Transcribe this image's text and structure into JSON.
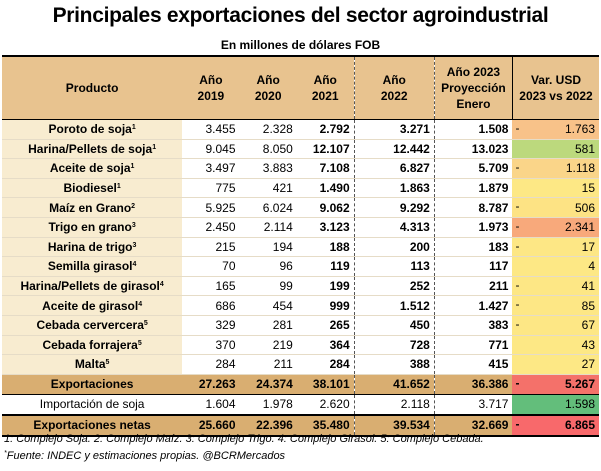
{
  "title": "Principales exportaciones del sector agroindustrial",
  "subtitle": "En millones de dólares FOB",
  "headers": [
    [
      "Producto"
    ],
    [
      "Año",
      "2019"
    ],
    [
      "Año",
      "2020"
    ],
    [
      "Año",
      "2021"
    ],
    [
      "Año",
      "2022"
    ],
    [
      "Año 2023",
      "Proyección",
      "Enero"
    ],
    [
      "Var. USD",
      "2023 vs 2022"
    ]
  ],
  "rows": [
    {
      "name": "Poroto de soja",
      "note": "1",
      "v2019": "3.455",
      "v2020": "2.328",
      "v2021": "2.792",
      "v2022": "3.271",
      "v2023": "1.508",
      "neg": "-",
      "var": "1.763",
      "color": "#f8c289"
    },
    {
      "name": "Harina/Pellets de soja",
      "note": "1",
      "v2019": "9.045",
      "v2020": "8.050",
      "v2021": "12.107",
      "v2022": "12.442",
      "v2023": "13.023",
      "neg": "",
      "var": "581",
      "color": "#bcd97d"
    },
    {
      "name": "Aceite de soja",
      "note": "1",
      "v2019": "3.497",
      "v2020": "3.883",
      "v2021": "7.108",
      "v2022": "6.827",
      "v2023": "5.709",
      "neg": "-",
      "var": "1.118",
      "color": "#fad589"
    },
    {
      "name": "Biodiesel",
      "note": "1",
      "v2019": "775",
      "v2020": "421",
      "v2021": "1.490",
      "v2022": "1.863",
      "v2023": "1.879",
      "neg": "",
      "var": "15",
      "color": "#fde885"
    },
    {
      "name": "Maíz en Grano",
      "note": "2",
      "v2019": "5.925",
      "v2020": "6.024",
      "v2021": "9.062",
      "v2022": "9.292",
      "v2023": "8.787",
      "neg": "-",
      "var": "506",
      "color": "#fde384"
    },
    {
      "name": "Trigo en grano",
      "note": "3",
      "v2019": "2.450",
      "v2020": "2.114",
      "v2021": "3.123",
      "v2022": "4.313",
      "v2023": "1.973",
      "neg": "-",
      "var": "2.341",
      "color": "#f8a97b"
    },
    {
      "name": "Harina de trigo",
      "note": "3",
      "v2019": "215",
      "v2020": "194",
      "v2021": "188",
      "v2022": "200",
      "v2023": "183",
      "neg": "-",
      "var": "17",
      "color": "#fde785"
    },
    {
      "name": "Semilla girasol",
      "note": "4",
      "v2019": "70",
      "v2020": "96",
      "v2021": "119",
      "v2022": "113",
      "v2023": "117",
      "neg": "",
      "var": "4",
      "color": "#fde885"
    },
    {
      "name": "Harina/Pellets de girasol",
      "note": "4",
      "v2019": "165",
      "v2020": "99",
      "v2021": "199",
      "v2022": "252",
      "v2023": "211",
      "neg": "-",
      "var": "41",
      "color": "#fde785"
    },
    {
      "name": "Aceite de girasol",
      "note": "4",
      "v2019": "686",
      "v2020": "454",
      "v2021": "999",
      "v2022": "1.512",
      "v2023": "1.427",
      "neg": "-",
      "var": "85",
      "color": "#fde785"
    },
    {
      "name": "Cebada cervercera",
      "note": "5",
      "v2019": "329",
      "v2020": "281",
      "v2021": "265",
      "v2022": "450",
      "v2023": "383",
      "neg": "-",
      "var": "67",
      "color": "#fde785"
    },
    {
      "name": "Cebada forrajera",
      "note": "5",
      "v2019": "370",
      "v2020": "219",
      "v2021": "364",
      "v2022": "728",
      "v2023": "771",
      "neg": "",
      "var": "43",
      "color": "#fde885"
    },
    {
      "name": "Malta",
      "note": "5",
      "v2019": "284",
      "v2020": "211",
      "v2021": "284",
      "v2022": "388",
      "v2023": "415",
      "neg": "",
      "var": "27",
      "color": "#fde885"
    }
  ],
  "totals": {
    "exports": {
      "label": "Exportaciones",
      "v2019": "27.263",
      "v2020": "24.374",
      "v2021": "38.101",
      "v2022": "41.652",
      "v2023": "36.386",
      "neg": "-",
      "var": "5.267",
      "color": "#f4716a"
    },
    "imports": {
      "label": "Importación de soja",
      "v2019": "1.604",
      "v2020": "1.978",
      "v2021": "2.620",
      "v2022": "2.118",
      "v2023": "3.717",
      "neg": "",
      "var": "1.598",
      "color": "#63be7b"
    },
    "net": {
      "label": "Exportaciones netas",
      "v2019": "25.660",
      "v2020": "22.396",
      "v2021": "35.480",
      "v2022": "39.534",
      "v2023": "32.669",
      "neg": "-",
      "var": "6.865",
      "color": "#f8696b"
    }
  },
  "footnotes": "1: Complejo Soja.   2: Complejo Maíz.   3: Complejo Trigo.   4: Complejo Girasol.   5: Complejo Cebada.",
  "source": "Fuente: INDEC y estimaciones propias.  @BCRMercados",
  "source_marker": "*"
}
